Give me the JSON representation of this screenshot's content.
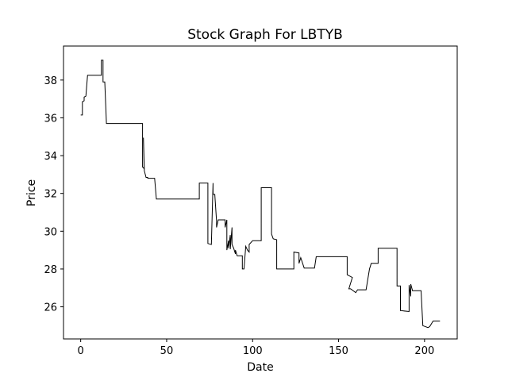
{
  "chart_data": {
    "type": "line",
    "title": "Stock Graph For LBTYB",
    "xlabel": "Date",
    "ylabel": "Price",
    "xlim": [
      -10,
      219
    ],
    "ylim": [
      24.3,
      39.8
    ],
    "xticks": [
      0,
      50,
      100,
      150,
      200
    ],
    "yticks": [
      26,
      28,
      30,
      32,
      34,
      36,
      38
    ],
    "grid": false,
    "line_color": "#000000",
    "series": [
      {
        "values": [
          [
            0,
            36.15
          ],
          [
            1,
            36.15
          ],
          [
            1,
            36.85
          ],
          [
            2,
            36.9
          ],
          [
            2,
            37.1
          ],
          [
            3,
            37.15
          ],
          [
            4,
            38.25
          ],
          [
            12,
            38.25
          ],
          [
            12,
            39.05
          ],
          [
            13,
            39.05
          ],
          [
            13,
            37.9
          ],
          [
            14,
            37.9
          ],
          [
            15,
            35.7
          ],
          [
            36,
            35.7
          ],
          [
            36,
            33.4
          ],
          [
            37,
            33.3
          ],
          [
            36.5,
            34.95
          ],
          [
            37,
            33.2
          ],
          [
            38,
            32.85
          ],
          [
            39,
            32.85
          ],
          [
            39,
            32.8
          ],
          [
            43,
            32.8
          ],
          [
            44,
            31.7
          ],
          [
            69,
            31.7
          ],
          [
            69,
            32.55
          ],
          [
            74,
            32.55
          ],
          [
            74,
            29.35
          ],
          [
            76,
            29.3
          ],
          [
            77,
            32.55
          ],
          [
            77,
            31.95
          ],
          [
            78,
            31.95
          ],
          [
            79,
            30.55
          ],
          [
            79,
            30.2
          ],
          [
            80,
            30.6
          ],
          [
            84,
            30.6
          ],
          [
            84,
            30.2
          ],
          [
            85,
            30.6
          ],
          [
            85,
            29.0
          ],
          [
            86,
            29.5
          ],
          [
            86,
            29.1
          ],
          [
            87,
            29.8
          ],
          [
            87,
            29.05
          ],
          [
            88,
            30.2
          ],
          [
            88,
            29.3
          ],
          [
            89,
            29.1
          ],
          [
            90,
            28.8
          ],
          [
            90,
            29.0
          ],
          [
            91,
            28.7
          ],
          [
            94,
            28.7
          ],
          [
            94,
            28.0
          ],
          [
            95,
            28.0
          ],
          [
            96,
            29.2
          ],
          [
            97,
            29.0
          ],
          [
            98,
            28.9
          ],
          [
            98,
            29.3
          ],
          [
            100,
            29.5
          ],
          [
            105,
            29.5
          ],
          [
            105,
            30.05
          ],
          [
            105,
            32.3
          ],
          [
            111,
            32.3
          ],
          [
            111,
            29.85
          ],
          [
            112,
            29.6
          ],
          [
            114,
            29.55
          ],
          [
            114,
            28.0
          ],
          [
            124,
            28.0
          ],
          [
            124,
            28.9
          ],
          [
            127,
            28.85
          ],
          [
            127,
            28.3
          ],
          [
            128,
            28.6
          ],
          [
            130,
            28.05
          ],
          [
            136,
            28.05
          ],
          [
            137,
            28.65
          ],
          [
            155,
            28.65
          ],
          [
            155,
            27.7
          ],
          [
            158,
            27.55
          ],
          [
            156,
            26.95
          ],
          [
            157,
            26.95
          ],
          [
            160,
            26.75
          ],
          [
            161,
            26.9
          ],
          [
            166,
            26.9
          ],
          [
            168,
            28.0
          ],
          [
            169,
            28.3
          ],
          [
            173,
            28.3
          ],
          [
            173,
            29.1
          ],
          [
            184,
            29.1
          ],
          [
            184,
            27.1
          ],
          [
            186,
            27.1
          ],
          [
            186,
            26.45
          ],
          [
            186,
            25.8
          ],
          [
            191,
            25.75
          ],
          [
            191,
            27.15
          ],
          [
            192,
            26.55
          ],
          [
            192,
            27.2
          ],
          [
            193,
            26.85
          ],
          [
            198,
            26.85
          ],
          [
            199,
            25.0
          ],
          [
            202,
            24.9
          ],
          [
            203,
            24.95
          ],
          [
            205,
            25.25
          ],
          [
            209,
            25.25
          ]
        ]
      }
    ]
  }
}
